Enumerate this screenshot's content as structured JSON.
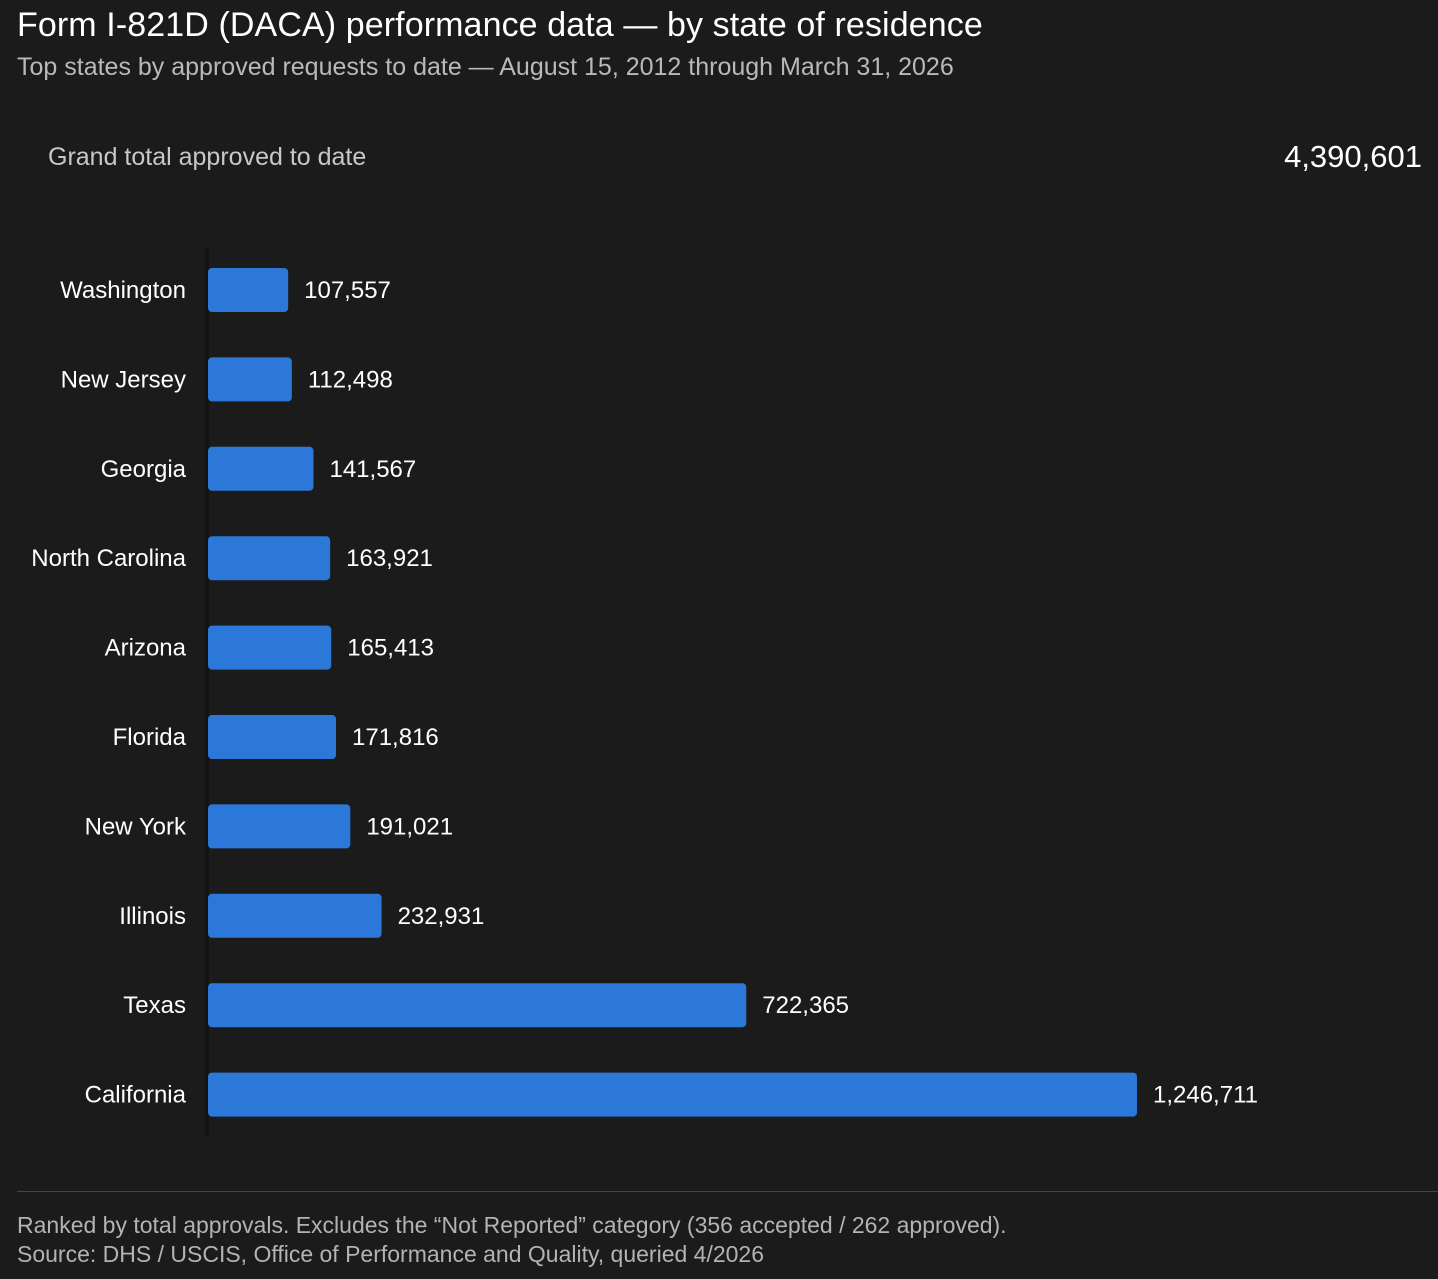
{
  "header": {
    "title": "Form I-821D (DACA) performance data — by state of residence",
    "subtitle": "Top states by approved requests to date — August 15, 2012 through March 31, 2026"
  },
  "summary": {
    "label": "Grand total approved to date",
    "value": "4,390,601"
  },
  "chart_data": {
    "type": "bar",
    "orientation": "horizontal",
    "categories": [
      "Washington",
      "New Jersey",
      "Georgia",
      "North Carolina",
      "Arizona",
      "Florida",
      "New York",
      "Illinois",
      "Texas",
      "California"
    ],
    "values": [
      107557,
      112498,
      141567,
      163921,
      165413,
      171816,
      191021,
      232931,
      722365,
      1246711
    ],
    "value_labels": [
      "107,557",
      "112,498",
      "141,567",
      "163,921",
      "165,413",
      "171,816",
      "191,021",
      "232,931",
      "722,365",
      "1,246,711"
    ],
    "title": "",
    "xlabel": "",
    "ylabel": "",
    "grid": false,
    "legend": "none",
    "bar_color": "#2b78d8"
  },
  "footer": {
    "note": "Ranked by total approvals. Excludes the “Not Reported” category (356 accepted / 262 approved).",
    "source": "Source: DHS / USCIS, Office of Performance and Quality, queried 4/2026"
  }
}
